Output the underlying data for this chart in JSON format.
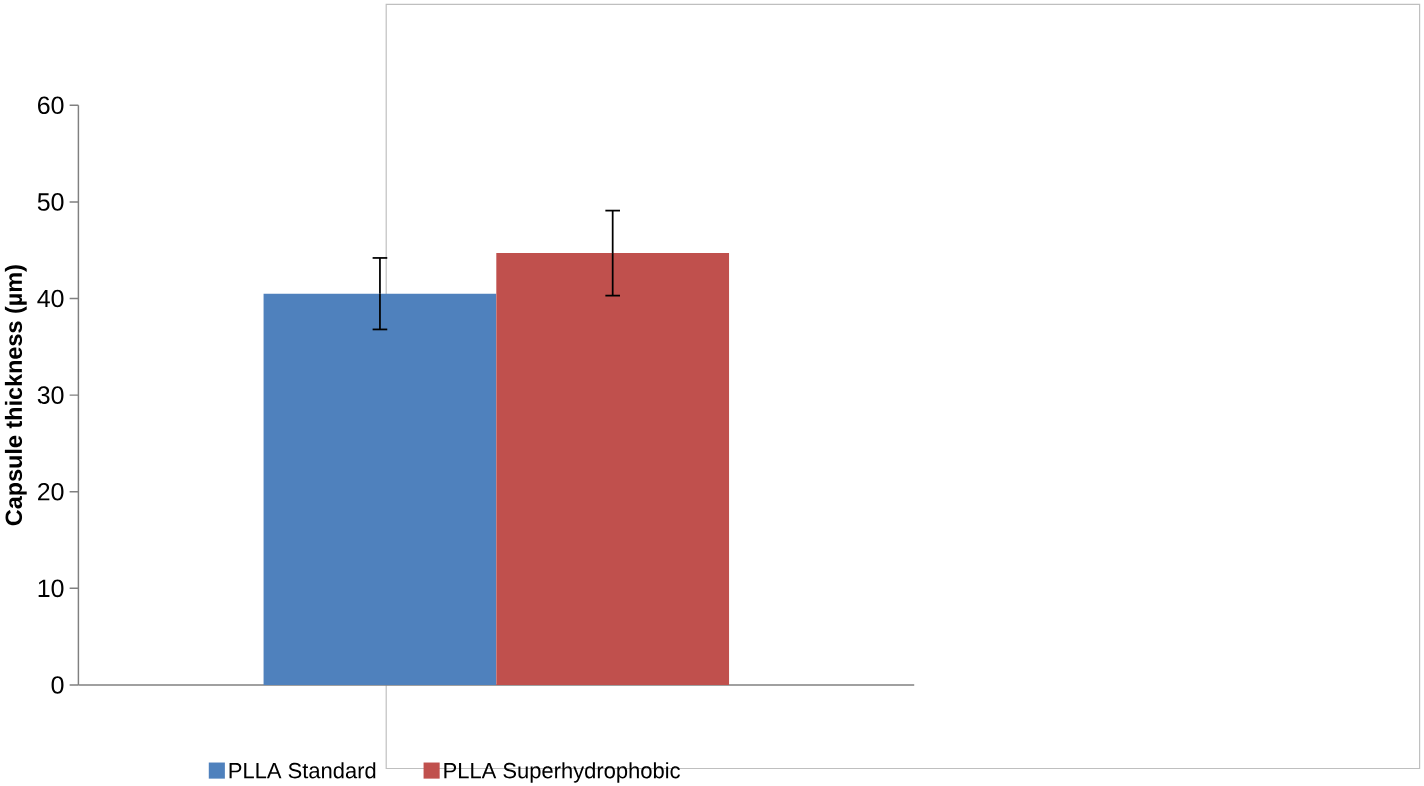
{
  "chart_data": {
    "type": "bar",
    "ylabel": "Capsule thickness (µm)",
    "categories": [
      null
    ],
    "series": [
      {
        "name": "PLLA Standard",
        "color": "#4f81bd",
        "values": [
          40.5
        ],
        "errors": [
          3.7
        ]
      },
      {
        "name": "PLLA Superhydrophobic",
        "color": "#c0504d",
        "values": [
          44.7
        ],
        "errors": [
          4.4
        ]
      }
    ],
    "ylim": [
      0,
      60
    ],
    "yticks": [
      0,
      10,
      20,
      30,
      40,
      50,
      60
    ],
    "legend": "bottom"
  }
}
